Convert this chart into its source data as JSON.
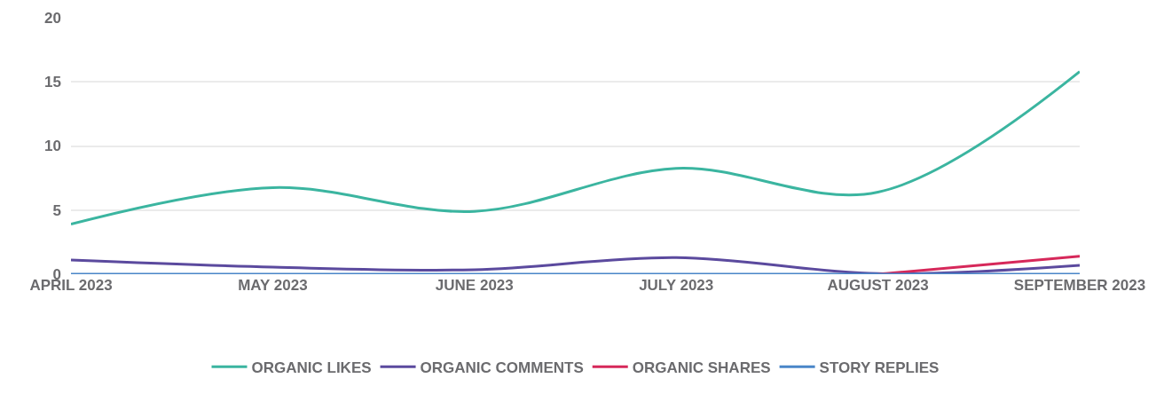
{
  "chart_data": {
    "type": "line",
    "categories": [
      "APRIL 2023",
      "MAY 2023",
      "JUNE 2023",
      "JULY 2023",
      "AUGUST 2023",
      "SEPTEMBER 2023"
    ],
    "series": [
      {
        "name": "ORGANIC LIKES",
        "color": "#3bb5a0",
        "values": [
          3.9,
          6.75,
          4.9,
          8.25,
          6.4,
          15.8
        ]
      },
      {
        "name": "ORGANIC COMMENTS",
        "color": "#5b4a9e",
        "values": [
          1.1,
          0.55,
          0.35,
          1.3,
          0.05,
          0.7
        ]
      },
      {
        "name": "ORGANIC SHARES",
        "color": "#d6285a",
        "values": [
          null,
          null,
          null,
          null,
          0,
          1.4
        ]
      },
      {
        "name": "STORY REPLIES",
        "color": "#4a86c8",
        "values": [
          0,
          0,
          0,
          0,
          0,
          0
        ]
      }
    ],
    "ylim": [
      0,
      20
    ],
    "yticks": [
      0,
      5,
      10,
      15,
      20
    ],
    "grid": "y",
    "legend": "bottom",
    "marker": "none",
    "line_style": "solid"
  }
}
